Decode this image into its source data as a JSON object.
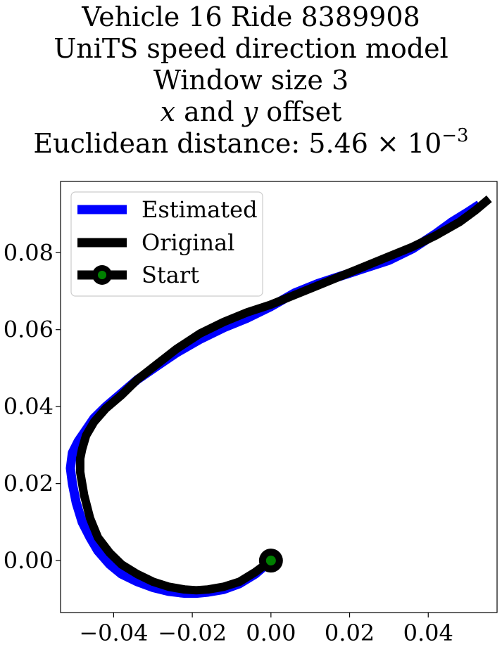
{
  "title": {
    "line1": "Vehicle 16 Ride 8389908",
    "line2": "UniTS speed direction model",
    "line3": "Window size 3",
    "line4_x": "x",
    "line4_mid": " and ",
    "line4_y": "y",
    "line4_end": " offset",
    "line5_prefix": "Euclidean distance: 5.46",
    "line5_times": " × 10",
    "line5_exp": "−3"
  },
  "chart_data": {
    "type": "line",
    "xlim": [
      -0.0535,
      0.0575
    ],
    "ylim": [
      -0.0135,
      0.0985
    ],
    "xticks": [
      -0.04,
      -0.02,
      0.0,
      0.02,
      0.04
    ],
    "xtick_labels": [
      "−0.04",
      "−0.02",
      "0.00",
      "0.02",
      "0.04"
    ],
    "yticks": [
      0.0,
      0.02,
      0.04,
      0.06,
      0.08
    ],
    "ytick_labels": [
      "0.00",
      "0.02",
      "0.04",
      "0.06",
      "0.08"
    ],
    "grid": false,
    "legend_position": "top-left",
    "series": [
      {
        "name": "Estimated",
        "color": "#0000ff",
        "x": [
          0.0,
          -0.004,
          -0.008,
          -0.012,
          -0.016,
          -0.019,
          -0.022,
          -0.026,
          -0.03,
          -0.034,
          -0.038,
          -0.041,
          -0.044,
          -0.046,
          -0.048,
          -0.0495,
          -0.0505,
          -0.051,
          -0.0505,
          -0.049,
          -0.047,
          -0.045,
          -0.042,
          -0.038,
          -0.034,
          -0.029,
          -0.024,
          -0.018,
          -0.012,
          -0.006,
          0.0,
          0.006,
          0.012,
          0.018,
          0.024,
          0.03,
          0.036,
          0.042,
          0.046,
          0.05,
          0.053
        ],
        "y": [
          0.0,
          -0.0035,
          -0.006,
          -0.0075,
          -0.0082,
          -0.0085,
          -0.0085,
          -0.008,
          -0.007,
          -0.0055,
          -0.0035,
          -0.001,
          0.0025,
          0.006,
          0.01,
          0.015,
          0.02,
          0.024,
          0.028,
          0.031,
          0.034,
          0.037,
          0.04,
          0.0435,
          0.047,
          0.0505,
          0.054,
          0.0575,
          0.0605,
          0.063,
          0.066,
          0.0695,
          0.072,
          0.074,
          0.076,
          0.078,
          0.081,
          0.085,
          0.088,
          0.0905,
          0.0925
        ]
      },
      {
        "name": "Original",
        "color": "#000000",
        "x": [
          0.0,
          -0.004,
          -0.008,
          -0.012,
          -0.016,
          -0.019,
          -0.022,
          -0.026,
          -0.03,
          -0.034,
          -0.038,
          -0.041,
          -0.044,
          -0.046,
          -0.0475,
          -0.0485,
          -0.0485,
          -0.048,
          -0.047,
          -0.045,
          -0.042,
          -0.038,
          -0.034,
          -0.029,
          -0.024,
          -0.018,
          -0.012,
          -0.006,
          0.0,
          0.006,
          0.012,
          0.018,
          0.024,
          0.03,
          0.036,
          0.042,
          0.048,
          0.052,
          0.0555
        ],
        "y": [
          0.0,
          -0.003,
          -0.0055,
          -0.0068,
          -0.0075,
          -0.0077,
          -0.0075,
          -0.0068,
          -0.0055,
          -0.0035,
          -0.001,
          0.002,
          0.006,
          0.011,
          0.017,
          0.023,
          0.0265,
          0.029,
          0.0325,
          0.036,
          0.0395,
          0.043,
          0.047,
          0.051,
          0.055,
          0.059,
          0.062,
          0.0645,
          0.0665,
          0.069,
          0.0715,
          0.074,
          0.0765,
          0.079,
          0.0815,
          0.0845,
          0.088,
          0.091,
          0.094
        ]
      }
    ],
    "start_point": {
      "name": "Start",
      "x": 0.0,
      "y": 0.0,
      "marker_edge": "#000000",
      "marker_face": "#008000"
    }
  }
}
